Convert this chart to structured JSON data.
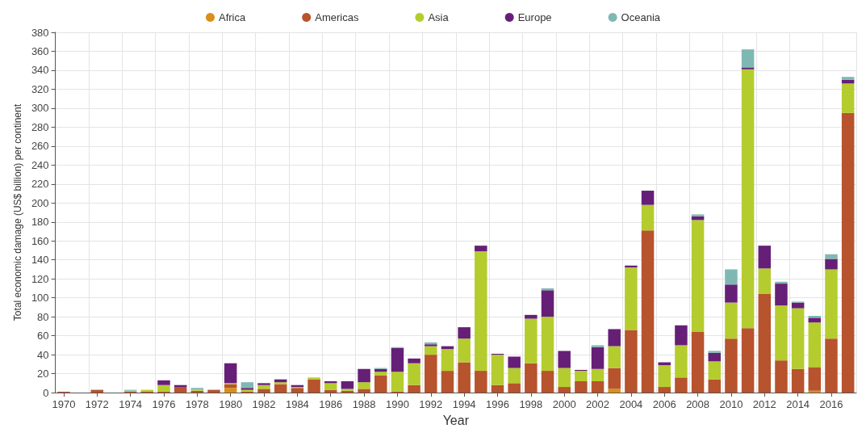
{
  "chart_data": {
    "type": "bar",
    "stacked": true,
    "xlabel": "Year",
    "ylabel": "Total economic damage (US$ billion) per continent",
    "categories": [
      "1970",
      null,
      "1972",
      null,
      "1974",
      null,
      "1976",
      null,
      "1978",
      null,
      "1980",
      null,
      "1982",
      null,
      "1984",
      null,
      "1986",
      null,
      "1988",
      null,
      "1990",
      null,
      "1992",
      null,
      "1994",
      null,
      "1996",
      null,
      "1998",
      null,
      "2000",
      null,
      "2002",
      null,
      "2004",
      null,
      "2006",
      null,
      "2008",
      null,
      "2010",
      null,
      "2012",
      null,
      "2014",
      null,
      "2016",
      null
    ],
    "series": [
      {
        "name": "Africa",
        "color": "#d9901a",
        "values": [
          null,
          null,
          null,
          null,
          null,
          null,
          null,
          null,
          null,
          null,
          5,
          null,
          null,
          null,
          null,
          null,
          null,
          null,
          null,
          null,
          null,
          null,
          null,
          null,
          null,
          null,
          null,
          null,
          null,
          null,
          null,
          null,
          null,
          4,
          null,
          null,
          null,
          null,
          null,
          null,
          null,
          null,
          null,
          null,
          null,
          2,
          null,
          null
        ]
      },
      {
        "name": "Americas",
        "color": "#b7532d",
        "values": [
          1,
          null,
          3,
          null,
          1,
          1,
          1,
          6,
          2,
          3,
          4,
          1,
          4,
          9,
          5,
          14,
          3,
          2,
          4,
          18,
          1,
          8,
          40,
          23,
          32,
          23,
          8,
          10,
          31,
          23,
          6,
          12,
          12,
          22,
          66,
          171,
          6,
          16,
          64,
          14,
          57,
          68,
          104,
          34,
          25,
          25,
          57,
          295
        ]
      },
      {
        "name": "Asia",
        "color": "#b5cc2e",
        "values": [
          null,
          null,
          null,
          null,
          1,
          2,
          7,
          null,
          1,
          null,
          1,
          2,
          4,
          2,
          1,
          2,
          7,
          2,
          7,
          4,
          21,
          23,
          9,
          23,
          25,
          126,
          32,
          16,
          47,
          57,
          20,
          11,
          13,
          23,
          66,
          27,
          23,
          34,
          118,
          19,
          38,
          273,
          27,
          58,
          64,
          47,
          73,
          31
        ]
      },
      {
        "name": "Europe",
        "color": "#661f77",
        "values": [
          null,
          null,
          null,
          null,
          null,
          null,
          5,
          2,
          null,
          null,
          21,
          2,
          2,
          3,
          2,
          null,
          2,
          8,
          14,
          3,
          25,
          5,
          2,
          3,
          12,
          6,
          1,
          12,
          4,
          28,
          18,
          1,
          23,
          18,
          2,
          15,
          3,
          21,
          4,
          9,
          19,
          2,
          24,
          23,
          6,
          5,
          11,
          4
        ]
      },
      {
        "name": "Oceania",
        "color": "#7fb8b3",
        "values": [
          null,
          null,
          null,
          null,
          1,
          null,
          null,
          null,
          2,
          null,
          null,
          6,
          null,
          null,
          null,
          null,
          null,
          null,
          null,
          1,
          1,
          null,
          2,
          null,
          null,
          null,
          null,
          null,
          null,
          2,
          null,
          null,
          2,
          null,
          null,
          null,
          null,
          null,
          2,
          2,
          16,
          19,
          null,
          2,
          1,
          2,
          5,
          3
        ]
      }
    ],
    "ylim": [
      0,
      380
    ],
    "yticks": [
      0,
      20,
      40,
      60,
      80,
      100,
      120,
      140,
      160,
      180,
      200,
      220,
      240,
      260,
      280,
      300,
      320,
      340,
      360,
      380
    ],
    "grid": true,
    "legend": "top"
  }
}
